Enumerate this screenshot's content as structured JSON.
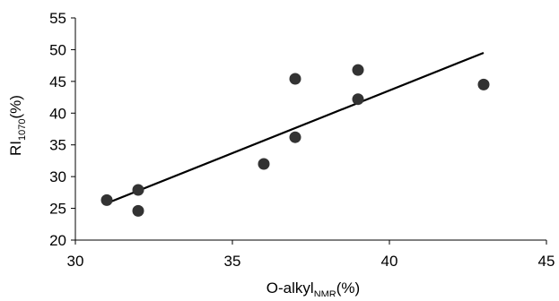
{
  "chart_data": {
    "type": "scatter",
    "title": "",
    "xlabel": {
      "main": "O-alkyl",
      "sub": "NMR",
      "suffix": "(%)"
    },
    "ylabel": {
      "main": "RI",
      "sub": "1070",
      "suffix": "(%)"
    },
    "xlim": [
      30,
      45
    ],
    "ylim": [
      20,
      55
    ],
    "xticks": [
      30,
      35,
      40,
      45
    ],
    "yticks": [
      20,
      25,
      30,
      35,
      40,
      45,
      50,
      55
    ],
    "grid": false,
    "legend": "none",
    "series": [
      {
        "points": [
          {
            "x": 31,
            "y": 26.3
          },
          {
            "x": 32,
            "y": 27.9
          },
          {
            "x": 32,
            "y": 24.6
          },
          {
            "x": 36,
            "y": 32.0
          },
          {
            "x": 37,
            "y": 45.4
          },
          {
            "x": 37,
            "y": 36.2
          },
          {
            "x": 39,
            "y": 46.8
          },
          {
            "x": 39,
            "y": 42.2
          },
          {
            "x": 43,
            "y": 44.5
          }
        ]
      }
    ],
    "trendline": {
      "type": "linear",
      "from": {
        "x": 31,
        "y": 25.8
      },
      "to": {
        "x": 43,
        "y": 49.5
      }
    },
    "colors": {
      "marker": "#333333",
      "line": "#000000",
      "axis": "#000000"
    }
  }
}
